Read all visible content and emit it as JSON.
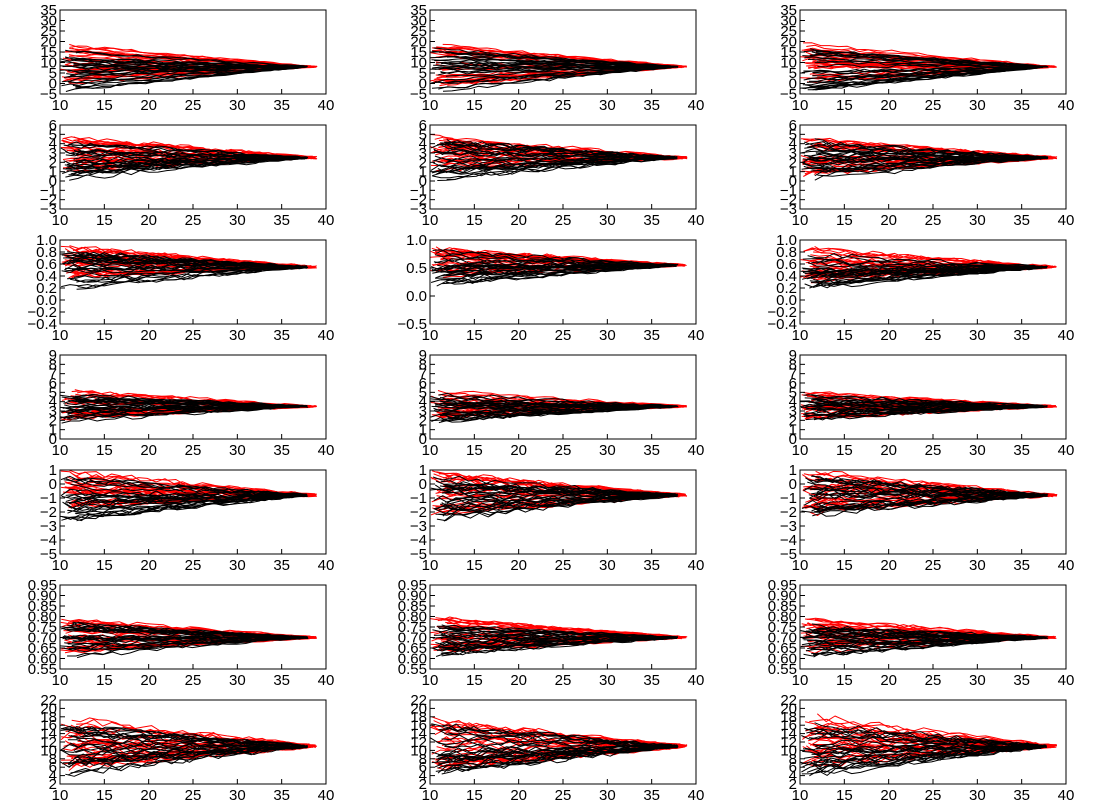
{
  "chart_data": {
    "type": "line",
    "layout": {
      "rows": 7,
      "columns": 3
    },
    "shared_x_axis": {
      "xlim": [
        10,
        40
      ],
      "xticks": [
        10,
        15,
        20,
        25,
        30,
        35,
        40
      ]
    },
    "colors": {
      "series_red": "#ff0000",
      "series_black": "#000000"
    },
    "grid": false,
    "legend": "none",
    "rows": [
      {
        "ylim": [
          -5,
          35
        ],
        "yticks": [
          -5,
          0,
          5,
          10,
          15,
          20,
          25,
          30,
          35
        ],
        "yticks_labels": [
          "−5",
          "0",
          "5",
          "10",
          "15",
          "20",
          "25",
          "30",
          "35"
        ],
        "center": 8,
        "spread_start": 10,
        "spread_end": 1
      },
      {
        "ylim": [
          -3,
          6
        ],
        "yticks": [
          -3,
          -2,
          -1,
          0,
          1,
          2,
          3,
          4,
          5,
          6
        ],
        "yticks_labels": [
          "−3",
          "−2",
          "−1",
          "0",
          "1",
          "2",
          "3",
          "4",
          "5",
          "6"
        ],
        "center": 2.5,
        "spread_start": 2,
        "spread_end": 0.4
      },
      {
        "ylim": [
          -0.4,
          1.0
        ],
        "yticks": [
          -0.4,
          -0.2,
          0.0,
          0.2,
          0.4,
          0.6,
          0.8,
          1.0
        ],
        "yticks_labels": [
          "−0.4",
          "−0.2",
          "0.0",
          "0.2",
          "0.4",
          "0.6",
          "0.8",
          "1.0"
        ],
        "center": 0.55,
        "spread_start": 0.3,
        "spread_end": 0.06
      },
      {
        "ylim": [
          0,
          9
        ],
        "yticks": [
          0,
          1,
          2,
          3,
          4,
          5,
          6,
          7,
          8,
          9
        ],
        "yticks_labels": [
          "0",
          "1",
          "2",
          "3",
          "4",
          "5",
          "6",
          "7",
          "8",
          "9"
        ],
        "center": 3.5,
        "spread_start": 1.5,
        "spread_end": 0.3
      },
      {
        "ylim": [
          -5,
          1
        ],
        "yticks": [
          -5,
          -4,
          -3,
          -2,
          -1,
          0,
          1
        ],
        "yticks_labels": [
          "−5",
          "−4",
          "−3",
          "−2",
          "−1",
          "0",
          "1"
        ],
        "center": -0.8,
        "spread_start": 1.5,
        "spread_end": 0.3
      },
      {
        "ylim": [
          0.55,
          0.95
        ],
        "yticks": [
          0.55,
          0.6,
          0.65,
          0.7,
          0.75,
          0.8,
          0.85,
          0.9,
          0.95
        ],
        "yticks_labels": [
          "0.55",
          "0.60",
          "0.65",
          "0.70",
          "0.75",
          "0.80",
          "0.85",
          "0.90",
          "0.95"
        ],
        "center": 0.7,
        "spread_start": 0.08,
        "spread_end": 0.015
      },
      {
        "ylim": [
          2,
          22
        ],
        "yticks": [
          2,
          4,
          6,
          8,
          10,
          12,
          14,
          16,
          18,
          20,
          22
        ],
        "yticks_labels": [
          "2",
          "4",
          "6",
          "8",
          "10",
          "12",
          "14",
          "16",
          "18",
          "20",
          "22"
        ],
        "center": 11,
        "spread_start": 6,
        "spread_end": 1.2
      }
    ],
    "panels_row_middle_variant": {
      "row_index": 2,
      "column_index": 1,
      "ylim": [
        -0.5,
        1.0
      ],
      "yticks": [
        -0.5,
        0.0,
        0.5,
        1.0
      ],
      "yticks_labels": [
        "−0.5",
        "0.0",
        "0.5",
        "1.0"
      ]
    },
    "series_per_color": 30,
    "x_start_range": [
      10,
      12
    ],
    "x_end_black": 38,
    "x_end_red": 39
  }
}
